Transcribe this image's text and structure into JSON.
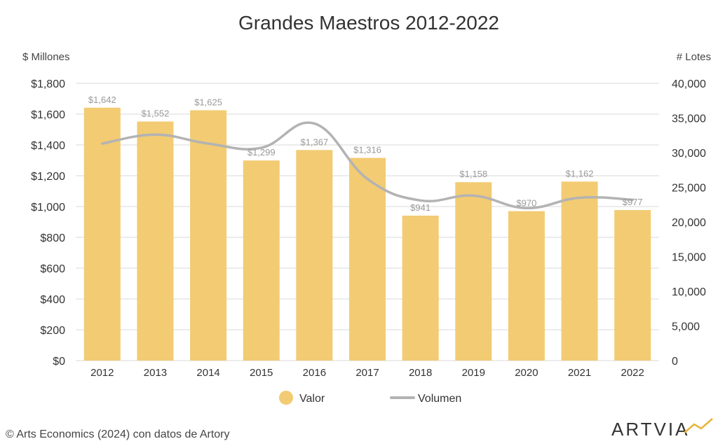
{
  "chart_data": {
    "type": "bar",
    "title": "Grandes Maestros 2012-2022",
    "y_left_label": "$ Millones",
    "y_right_label": "# Lotes",
    "categories": [
      "2012",
      "2013",
      "2014",
      "2015",
      "2016",
      "2017",
      "2018",
      "2019",
      "2020",
      "2021",
      "2022"
    ],
    "series": [
      {
        "name": "Valor",
        "type": "bar",
        "axis": "left",
        "color": "#F2CB73",
        "values": [
          1642,
          1552,
          1625,
          1299,
          1367,
          1316,
          941,
          1158,
          970,
          1162,
          977
        ],
        "labels": [
          "$1,642",
          "$1,552",
          "$1,625",
          "$1,299",
          "$1,367",
          "$1,316",
          "$941",
          "$1,158",
          "$970",
          "$1,162",
          "$977"
        ]
      },
      {
        "name": "Volumen",
        "type": "line",
        "axis": "right",
        "color": "#B3B3B3",
        "values": [
          31300,
          32600,
          31300,
          30700,
          34200,
          26200,
          23100,
          23800,
          22000,
          23500,
          23200
        ]
      }
    ],
    "y_left": {
      "min": 0,
      "max": 1800,
      "ticks": [
        "$0",
        "$200",
        "$400",
        "$600",
        "$800",
        "$1,000",
        "$1,200",
        "$1,400",
        "$1,600",
        "$1,800"
      ]
    },
    "y_right": {
      "min": 0,
      "max": 40000,
      "ticks": [
        "0",
        "5,000",
        "10,000",
        "15,000",
        "20,000",
        "25,000",
        "30,000",
        "35,000",
        "40,000"
      ]
    },
    "grid": true,
    "legend": {
      "position": "bottom",
      "items": [
        "Valor",
        "Volumen"
      ]
    }
  },
  "footer": {
    "source": "©  Arts Economics (2024) con datos de Artory",
    "logo_text": "ARTVIA",
    "logo_color": "#E8B43A"
  }
}
